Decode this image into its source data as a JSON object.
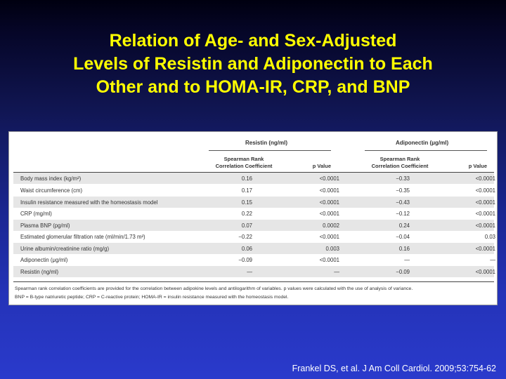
{
  "slide": {
    "title_lines": [
      "Relation of Age- and Sex-Adjusted",
      "Levels of Resistin and Adiponectin to Each",
      "Other and to HOMA-IR, CRP, and BNP"
    ],
    "citation": "Frankel DS, et al. J Am Coll Cardiol. 2009;53:754-62"
  },
  "table": {
    "groups": {
      "resistin": "Resistin (ng/ml)",
      "adiponectin": "Adiponectin (μg/ml)"
    },
    "col_headers": {
      "spearman_line1": "Spearman Rank",
      "spearman_line2": "Correlation Coefficient",
      "p_value": "p Value"
    },
    "rows": [
      {
        "label": "Body mass index (kg/m²)",
        "r_coef": "0.16",
        "r_p": "<0.0001",
        "a_coef": "−0.33",
        "a_p": "<0.0001"
      },
      {
        "label": "Waist circumference (cm)",
        "r_coef": "0.17",
        "r_p": "<0.0001",
        "a_coef": "−0.35",
        "a_p": "<0.0001"
      },
      {
        "label": "Insulin resistance measured with the homeostasis model",
        "r_coef": "0.15",
        "r_p": "<0.0001",
        "a_coef": "−0.43",
        "a_p": "<0.0001"
      },
      {
        "label": "CRP (mg/ml)",
        "r_coef": "0.22",
        "r_p": "<0.0001",
        "a_coef": "−0.12",
        "a_p": "<0.0001"
      },
      {
        "label": "Plasma BNP (pg/ml)",
        "r_coef": "0.07",
        "r_p": "0.0002",
        "a_coef": "0.24",
        "a_p": "<0.0001"
      },
      {
        "label": "Estimated glomerular filtration rate (ml/min/1.73 m²)",
        "r_coef": "−0.22",
        "r_p": "<0.0001",
        "a_coef": "−0.04",
        "a_p": "0.03"
      },
      {
        "label": "Urine albumin/creatinine ratio (mg/g)",
        "r_coef": "0.06",
        "r_p": "0.003",
        "a_coef": "0.16",
        "a_p": "<0.0001"
      },
      {
        "label": "Adiponectin (μg/ml)",
        "r_coef": "−0.09",
        "r_p": "<0.0001",
        "a_coef": "—",
        "a_p": "—"
      },
      {
        "label": "Resistin (ng/ml)",
        "r_coef": "—",
        "r_p": "—",
        "a_coef": "−0.09",
        "a_p": "<0.0001"
      }
    ],
    "footnote_1": "Spearman rank correlation coefficients are provided for the correlation between adipokine levels and antilogarithm of variables. p values were calculated with the use of analysis of variance.",
    "footnote_2": "BNP = B-type natriuretic peptide; CRP = C-reactive protein; HOMA-IR = insulin resistance measured with the homeostasis model."
  }
}
